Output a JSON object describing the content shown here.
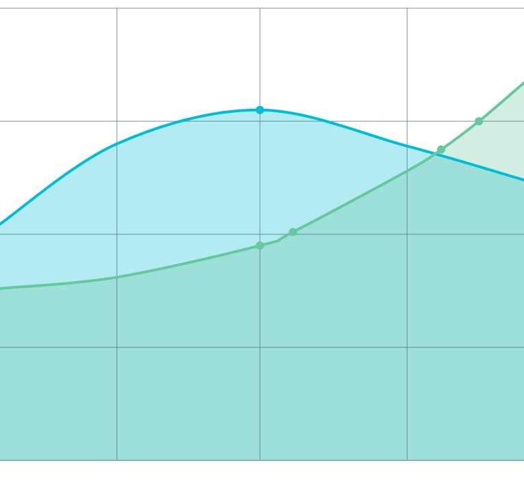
{
  "chart_data": {
    "type": "area",
    "title": "",
    "xlabel": "",
    "ylabel": "",
    "xlim": [
      0,
      100
    ],
    "ylim": [
      0,
      4
    ],
    "x_gridlines": [
      22.3,
      49.6,
      77.7
    ],
    "y_gridlines": [
      1,
      2,
      3,
      4
    ],
    "grid": true,
    "legend": "none",
    "series": [
      {
        "color": "#00bcd4",
        "fill": "#b2ebf2",
        "x": [
          0,
          22.3,
          49.6,
          77.7,
          100
        ],
        "y": [
          2.09,
          2.8,
          3.1,
          2.78,
          2.48
        ],
        "markers": [
          49.6
        ]
      },
      {
        "color": "#66c89e",
        "fill": "rgba(105,200,160,0.3)",
        "x": [
          0,
          22.3,
          49.6,
          55.9,
          77.7,
          84.2,
          91.4,
          100
        ],
        "y": [
          1.52,
          1.62,
          1.9,
          2.02,
          2.56,
          2.75,
          3.0,
          3.34
        ],
        "markers": [
          49.6,
          55.9,
          84.2,
          91.4
        ]
      }
    ]
  }
}
